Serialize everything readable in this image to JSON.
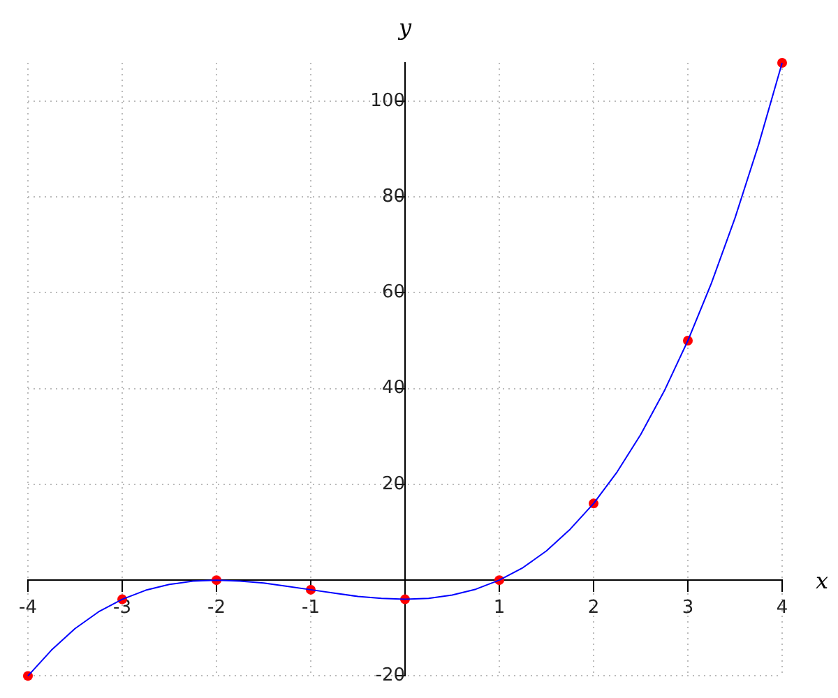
{
  "chart_data": {
    "type": "line",
    "xlabel": "x",
    "ylabel": "y",
    "xlim": [
      -4,
      4
    ],
    "ylim": [
      -20,
      108
    ],
    "xticks": [
      -4,
      -3,
      -2,
      -1,
      1,
      2,
      3,
      4
    ],
    "yticks": [
      -20,
      20,
      40,
      60,
      80,
      100
    ],
    "grid": true,
    "series": [
      {
        "type": "line",
        "color": "#0000ff",
        "marker": "none",
        "x": [
          -4,
          -3.75,
          -3.5,
          -3.25,
          -3,
          -2.75,
          -2.5,
          -2.25,
          -2,
          -1.75,
          -1.5,
          -1.25,
          -1,
          -0.75,
          -0.5,
          -0.25,
          0,
          0.25,
          0.5,
          0.75,
          1,
          1.25,
          1.5,
          1.75,
          2,
          2.25,
          2.5,
          2.75,
          3,
          3.25,
          3.5,
          3.75,
          4
        ],
        "values": [
          -20,
          -14.6,
          -10.1,
          -6.6,
          -4,
          -2.1,
          -0.9,
          -0.2,
          0,
          -0.2,
          -0.6,
          -1.3,
          -2,
          -2.7,
          -3.4,
          -3.8,
          -4,
          -3.8,
          -3.1,
          -1.9,
          0,
          2.6,
          6.1,
          10.6,
          16,
          22.6,
          30.4,
          39.5,
          50,
          62,
          75.6,
          90.9,
          108
        ]
      },
      {
        "type": "scatter",
        "color": "#ff0000",
        "marker": "circle",
        "x": [
          -4,
          -3,
          -2,
          -1,
          0,
          1,
          2,
          3,
          4
        ],
        "values": [
          -20,
          -4,
          0,
          -2,
          -4,
          0,
          16,
          50,
          108
        ]
      }
    ]
  }
}
